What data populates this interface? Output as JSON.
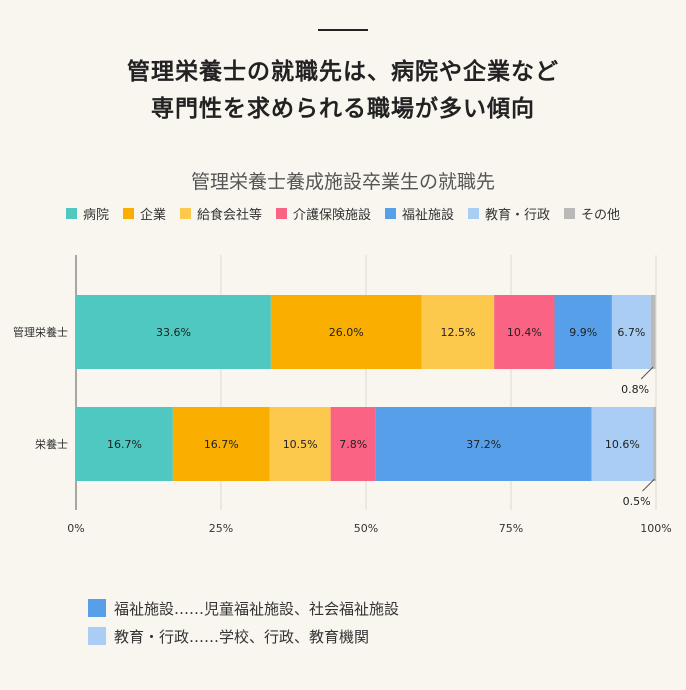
{
  "headline": {
    "line1": "管理栄養士の就職先は、病院や企業など",
    "line2": "専門性を求められる職場が多い傾向"
  },
  "chart_data": {
    "type": "bar",
    "orientation": "horizontal",
    "stacked": true,
    "title": "管理栄養士養成施設卒業生の就職先",
    "categories": [
      "管理栄養士",
      "栄養士"
    ],
    "series": [
      {
        "name": "病院",
        "color": "#4ec8c0",
        "values": [
          33.6,
          16.7
        ],
        "labels": [
          "33.6%",
          "16.7%"
        ]
      },
      {
        "name": "企業",
        "color": "#f9ae00",
        "values": [
          26.0,
          16.7
        ],
        "labels": [
          "26.0%",
          "16.7%"
        ]
      },
      {
        "name": "給食会社等",
        "color": "#fdc94d",
        "values": [
          12.5,
          10.5
        ],
        "labels": [
          "12.5%",
          "10.5%"
        ]
      },
      {
        "name": "介護保険施設",
        "color": "#fb6384",
        "values": [
          10.4,
          7.8
        ],
        "labels": [
          "10.4%",
          "7.8%"
        ]
      },
      {
        "name": "福祉施設",
        "color": "#57a0e9",
        "values": [
          9.9,
          37.2
        ],
        "labels": [
          "9.9%",
          "37.2%"
        ]
      },
      {
        "name": "教育・行政",
        "color": "#a9cdf5",
        "values": [
          6.7,
          10.6
        ],
        "labels": [
          "6.7%",
          "10.6%"
        ]
      },
      {
        "name": "その他",
        "color": "#b9b9b9",
        "values": [
          0.8,
          0.5
        ],
        "labels": [
          "0.8%",
          "0.5%"
        ]
      }
    ],
    "xlim": [
      0,
      100
    ],
    "x_ticks": [
      "0%",
      "25%",
      "50%",
      "75%",
      "100%"
    ],
    "grid": true,
    "legend_position": "top"
  },
  "notes": [
    {
      "color": "#57a0e9",
      "text": "福祉施設……児童福祉施設、社会福祉施設"
    },
    {
      "color": "#a9cdf5",
      "text": "教育・行政……学校、行政、教育機関"
    }
  ]
}
